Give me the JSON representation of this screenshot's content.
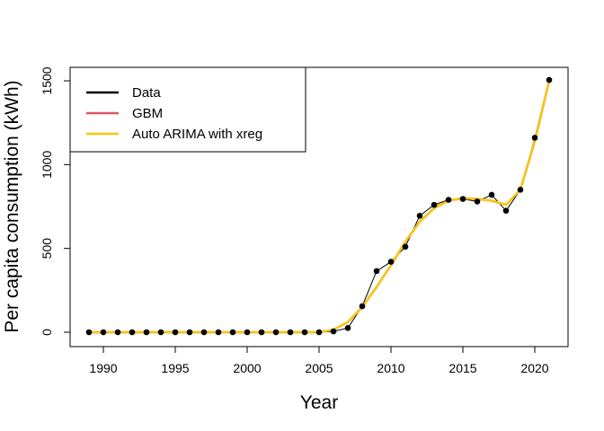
{
  "chart_data": {
    "type": "line",
    "title": "",
    "xlabel": "Year",
    "ylabel": "Per capita consumption (kWh)",
    "xlim": [
      1989,
      2021
    ],
    "ylim": [
      0,
      1500
    ],
    "x_ticks": [
      1990,
      1995,
      2000,
      2005,
      2010,
      2015,
      2020
    ],
    "y_ticks": [
      0,
      500,
      1000,
      1500
    ],
    "legend_position": "top-left",
    "grid": false,
    "x": [
      1989,
      1990,
      1991,
      1992,
      1993,
      1994,
      1995,
      1996,
      1997,
      1998,
      1999,
      2000,
      2001,
      2002,
      2003,
      2004,
      2005,
      2006,
      2007,
      2008,
      2009,
      2010,
      2011,
      2012,
      2013,
      2014,
      2015,
      2016,
      2017,
      2018,
      2019,
      2020,
      2021
    ],
    "series": [
      {
        "name": "Data",
        "color": "#000000",
        "marker": "point",
        "values": [
          0,
          0,
          0,
          0,
          0,
          0,
          0,
          0,
          0,
          0,
          0,
          0,
          0,
          0,
          0,
          0,
          0,
          5,
          25,
          155,
          365,
          420,
          510,
          695,
          760,
          790,
          795,
          780,
          820,
          725,
          850,
          1160,
          1505
        ]
      },
      {
        "name": "GBM",
        "color": "#DF536B",
        "values": [
          0,
          0,
          0,
          0,
          0,
          0,
          0,
          0,
          0,
          0,
          0,
          0,
          0,
          0,
          0,
          0,
          0,
          15,
          60,
          150,
          270,
          400,
          540,
          660,
          740,
          785,
          800,
          795,
          785,
          760,
          850,
          1140,
          1500
        ]
      },
      {
        "name": "Auto ARIMA with xreg",
        "color": "#F5C710",
        "values": [
          0,
          0,
          0,
          0,
          0,
          0,
          0,
          0,
          0,
          0,
          0,
          0,
          0,
          0,
          0,
          0,
          0,
          15,
          60,
          150,
          270,
          400,
          540,
          660,
          740,
          785,
          800,
          795,
          785,
          760,
          850,
          1140,
          1500
        ]
      }
    ]
  }
}
